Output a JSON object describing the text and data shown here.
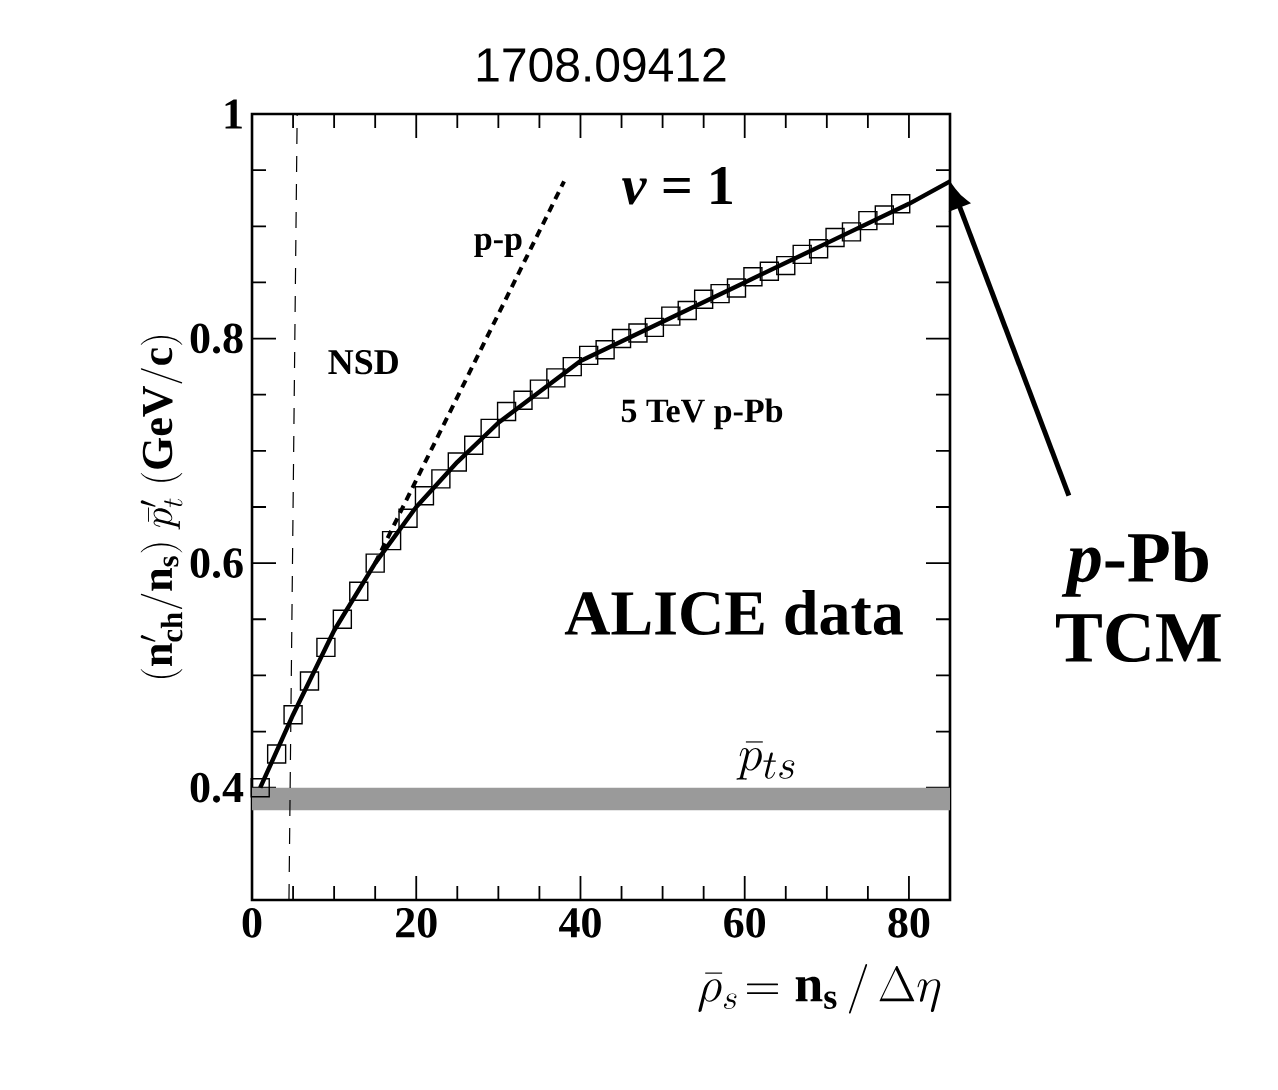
{
  "chart_data": {
    "type": "scatter",
    "title": "1708.09412",
    "xlabel": "\\bar{\\rho}_{s} \\!= \\mathbf{n}_{\\mathbf{s}} \\,/\\, \\Delta\\eta",
    "ylabel": "(\\mathbf{n}_{\\mathbf{ch}}'/\\mathbf{n}_{\\mathbf{s}})\\; \\bar{p}_{t}'\\ \\mathbf{(GeV/c)}",
    "xlim": [
      0,
      85
    ],
    "ylim": [
      0.3,
      1
    ],
    "xticks": [
      0,
      20,
      40,
      60,
      80
    ],
    "yticks": [
      0.4,
      0.6,
      0.8,
      1
    ],
    "series": [
      {
        "marker": "square",
        "color": "#000000",
        "x": [
          1,
          3,
          5,
          7,
          9,
          11,
          13,
          15,
          17,
          19,
          21,
          23,
          25,
          27,
          29,
          31,
          33,
          35,
          37,
          39,
          41,
          43,
          45,
          47,
          49,
          51,
          53,
          55,
          57,
          59,
          61,
          63,
          65,
          67,
          69,
          71,
          73,
          75,
          77,
          79
        ],
        "values": [
          0.4,
          0.43,
          0.465,
          0.495,
          0.525,
          0.55,
          0.575,
          0.6,
          0.62,
          0.64,
          0.66,
          0.675,
          0.69,
          0.705,
          0.72,
          0.735,
          0.745,
          0.755,
          0.765,
          0.775,
          0.785,
          0.79,
          0.8,
          0.805,
          0.81,
          0.82,
          0.825,
          0.835,
          0.84,
          0.845,
          0.855,
          0.86,
          0.865,
          0.875,
          0.88,
          0.89,
          0.895,
          0.905,
          0.91,
          0.92
        ]
      },
      {
        "type": "line",
        "line_style": "solid",
        "color": "#000000",
        "x": [
          1,
          5,
          10,
          15,
          20,
          25,
          30,
          40,
          50,
          60,
          70,
          80,
          85
        ],
        "values": [
          0.4,
          0.465,
          0.54,
          0.6,
          0.65,
          0.69,
          0.725,
          0.78,
          0.815,
          0.85,
          0.885,
          0.92,
          0.94
        ]
      },
      {
        "type": "line",
        "line_style": "dotted",
        "color": "#000000",
        "x": [
          15,
          38
        ],
        "values": [
          0.6,
          0.94
        ]
      },
      {
        "type": "line",
        "line_style": "dashed",
        "color": "#000000",
        "x": [
          4.5,
          5.5
        ],
        "values": [
          0.3,
          1.0
        ]
      }
    ],
    "bands": [
      {
        "axis": "y",
        "from": 0.38,
        "to": 0.4,
        "label": "\\bar{p}_{ts}",
        "color": "#9a9a9a"
      }
    ],
    "annotations": [
      "*ν* = 1",
      "p-p",
      "NSD",
      "5 TeV p-Pb",
      "ALICE data",
      "*p*-Pb TCM"
    ],
    "grid": false
  }
}
